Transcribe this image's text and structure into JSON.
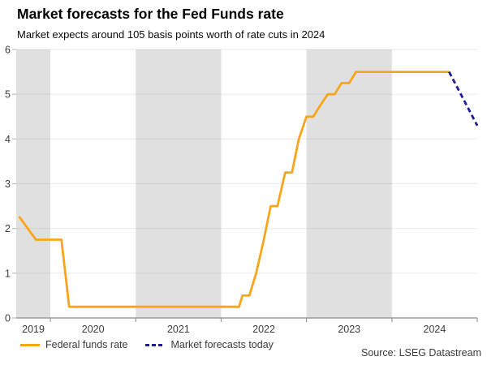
{
  "header": {
    "title": "Market forecasts for the Fed Funds rate",
    "subtitle": "Market expects around 105 basis points worth of rate cuts in 2024"
  },
  "source": "Source: LSEG Datastream",
  "chart_data": {
    "type": "line",
    "title": "Market forecasts for the Fed Funds rate",
    "subtitle": "Market expects around 105 basis points worth of rate cuts in 2024",
    "xlim": [
      2019.6,
      2025.0
    ],
    "ylim": [
      0,
      6
    ],
    "y_ticks": [
      0,
      1,
      2,
      3,
      4,
      5,
      6
    ],
    "x_year_labels": [
      "2019",
      "2020",
      "2021",
      "2022",
      "2023",
      "2024"
    ],
    "year_boundaries": [
      2020,
      2021,
      2022,
      2023,
      2024,
      2025
    ],
    "shaded_years": [
      2019,
      2021,
      2023
    ],
    "grid": "horizontal",
    "legend_position": "bottom-left",
    "colors": {
      "band": "#e0e0e0",
      "gridline": "rgba(110,110,110,0.13)",
      "axis": "#9a9a9a",
      "y_tick": "#bdbdbd",
      "tick_label": "#3c3c3c"
    },
    "series": [
      {
        "name": "Federal funds rate",
        "color": "#F9A51A",
        "dash": "solid",
        "points": [
          [
            2019.64,
            2.25
          ],
          [
            2019.83,
            1.75
          ],
          [
            2020.13,
            1.75
          ],
          [
            2020.22,
            0.25
          ],
          [
            2022.21,
            0.25
          ],
          [
            2022.25,
            0.5
          ],
          [
            2022.33,
            0.5
          ],
          [
            2022.41,
            1.0
          ],
          [
            2022.5,
            1.75
          ],
          [
            2022.58,
            2.5
          ],
          [
            2022.66,
            2.5
          ],
          [
            2022.75,
            3.25
          ],
          [
            2022.83,
            3.25
          ],
          [
            2022.91,
            4.0
          ],
          [
            2023.0,
            4.5
          ],
          [
            2023.08,
            4.5
          ],
          [
            2023.16,
            4.75
          ],
          [
            2023.25,
            5.0
          ],
          [
            2023.33,
            5.0
          ],
          [
            2023.41,
            5.25
          ],
          [
            2023.5,
            5.25
          ],
          [
            2023.58,
            5.5
          ],
          [
            2024.67,
            5.5
          ]
        ]
      },
      {
        "name": "Market forecasts today",
        "color": "#1b1b9a",
        "dash": "dashed",
        "points": [
          [
            2024.67,
            5.5
          ],
          [
            2025.0,
            4.3
          ]
        ]
      }
    ]
  }
}
